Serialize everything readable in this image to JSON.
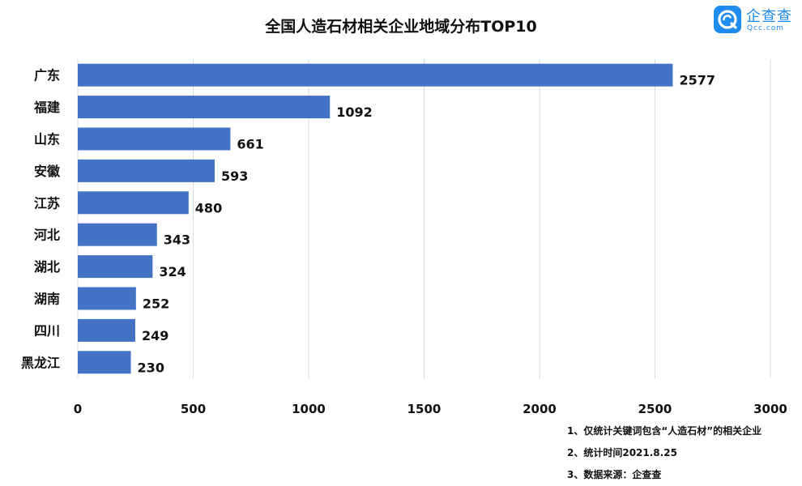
{
  "title": "全国人造石材相关企业地域分布TOP10",
  "logo": {
    "name": "企查查",
    "domain": "Qcc.com"
  },
  "chart_data": {
    "type": "bar",
    "orientation": "horizontal",
    "title": "全国人造石材相关企业地域分布TOP10",
    "categories": [
      "广东",
      "福建",
      "山东",
      "安徽",
      "江苏",
      "河北",
      "湖北",
      "湖南",
      "四川",
      "黑龙江"
    ],
    "values": [
      2577,
      1092,
      661,
      593,
      480,
      343,
      324,
      252,
      249,
      230
    ],
    "xlim": [
      0,
      3000
    ],
    "xticks": [
      0,
      500,
      1000,
      1500,
      2000,
      2500,
      3000
    ],
    "grid": true,
    "bar_color": "#4472c4",
    "data_labels": true
  },
  "notes": [
    "1、仅统计关键词包含“人造石材”的相关企业",
    "2、统计时间2021.8.25",
    "3、数据来源：企查查"
  ]
}
